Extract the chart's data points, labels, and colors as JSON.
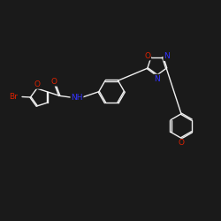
{
  "bg_color": "#1a1a1a",
  "bond_color": "#f0f0f0",
  "atom_colors": {
    "Br": "#dd2200",
    "O": "#dd2200",
    "N": "#3333ff",
    "H": "#f0f0f0",
    "C": "#f0f0f0"
  },
  "figsize": [
    2.5,
    2.5
  ],
  "dpi": 100
}
